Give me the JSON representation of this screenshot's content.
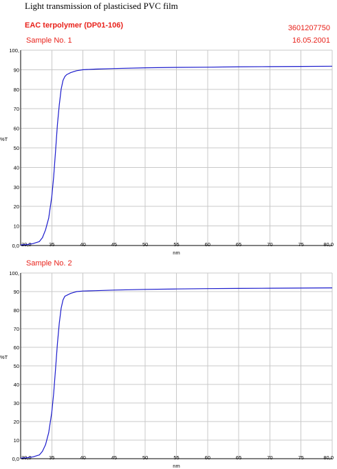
{
  "header": {
    "title": "Light transmission of plasticised PVC film",
    "product": "EAC terpolymer (DP01-106)",
    "code": "3601207750",
    "date": "16.05.2001"
  },
  "chart_data": [
    {
      "type": "line",
      "subtitle": "Sample No. 1",
      "xlabel": "nm",
      "ylabel": "%T",
      "xlim": [
        30,
        80
      ],
      "ylim": [
        0,
        100
      ],
      "xticks": [
        "30,0",
        "35",
        "40",
        "45",
        "50",
        "55",
        "60",
        "65",
        "70",
        "75",
        "80,0"
      ],
      "yticks": [
        "0,0",
        "10",
        "20",
        "30",
        "40",
        "50",
        "60",
        "70",
        "80",
        "90",
        "100,"
      ],
      "grid": true,
      "series": [
        {
          "color": "#1a1acc",
          "x": [
            30.0,
            31.0,
            32.0,
            33.0,
            33.5,
            34.0,
            34.5,
            35.0,
            35.3,
            35.6,
            35.9,
            36.2,
            36.5,
            36.8,
            37.1,
            37.4,
            37.7,
            38.0,
            38.5,
            39.0,
            40.0,
            42.0,
            45.0,
            50.0,
            55.0,
            60.0,
            65.0,
            70.0,
            75.0,
            80.0
          ],
          "y": [
            0.3,
            0.5,
            1.0,
            2.0,
            4.0,
            8.0,
            14.0,
            25.0,
            35.0,
            48.0,
            62.0,
            72.0,
            80.0,
            84.5,
            86.5,
            87.5,
            88.0,
            88.5,
            89.0,
            89.5,
            90.0,
            90.3,
            90.6,
            91.0,
            91.2,
            91.3,
            91.5,
            91.6,
            91.7,
            91.8
          ]
        }
      ]
    },
    {
      "type": "line",
      "subtitle": "Sample No. 2",
      "xlabel": "nm",
      "ylabel": "%T",
      "xlim": [
        30,
        80
      ],
      "ylim": [
        0,
        100
      ],
      "xticks": [
        "30,0",
        "35",
        "40",
        "45",
        "50",
        "55",
        "60",
        "65",
        "70",
        "75",
        "80,0"
      ],
      "yticks": [
        "0,0",
        "10",
        "20",
        "30",
        "40",
        "50",
        "60",
        "70",
        "80",
        "90",
        "100,"
      ],
      "grid": true,
      "series": [
        {
          "color": "#1a1acc",
          "x": [
            30.0,
            31.0,
            32.0,
            33.0,
            33.5,
            34.0,
            34.5,
            35.0,
            35.3,
            35.6,
            35.9,
            36.2,
            36.5,
            36.8,
            37.1,
            37.4,
            37.7,
            38.0,
            38.5,
            39.0,
            40.0,
            42.0,
            45.0,
            50.0,
            55.0,
            60.0,
            65.0,
            70.0,
            75.0,
            80.0
          ],
          "y": [
            0.3,
            0.5,
            1.0,
            2.0,
            4.0,
            7.5,
            14.0,
            25.0,
            35.0,
            48.0,
            62.0,
            73.0,
            81.0,
            85.5,
            87.5,
            88.0,
            88.5,
            89.0,
            89.5,
            90.0,
            90.3,
            90.5,
            90.8,
            91.2,
            91.4,
            91.6,
            91.7,
            91.8,
            91.9,
            92.0
          ]
        }
      ]
    }
  ]
}
